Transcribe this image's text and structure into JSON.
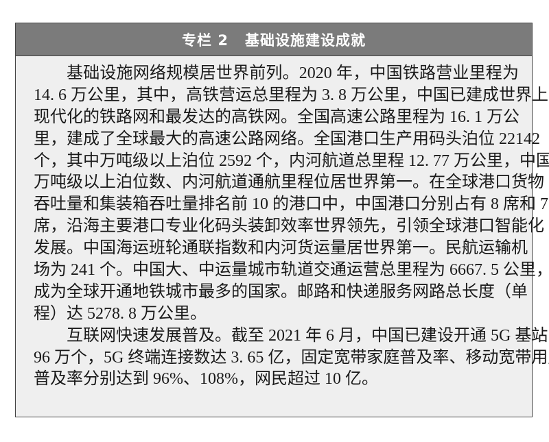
{
  "header": {
    "label": "专栏 2",
    "title": "基础设施建设成就"
  },
  "paragraphs": [
    {
      "lines": [
        "基础设施网络规模居世界前列。2020 年，中国铁路营业里程为",
        "14. 6 万公里，其中，高铁营运总里程为 3. 8 万公里，中国已建成世界上最",
        "现代化的铁路网和最发达的高铁网。全国高速公路里程为 16. 1 万公",
        "里，建成了全球最大的高速公路网络。全国港口生产用码头泊位 22142",
        "个，其中万吨级以上泊位 2592 个，内河航道总里程 12. 77 万公里，中国",
        "万吨级以上泊位数、内河航道通航里程位居世界第一。在全球港口货物",
        "吞吐量和集装箱吞吐量排名前 10 的港口中，中国港口分别占有 8 席和 7",
        "席，沿海主要港口专业化码头装卸效率世界领先，引领全球港口智能化",
        "发展。中国海运班轮通联指数和内河货运量居世界第一。民航运输机",
        "场为 241 个。中国大、中运量城市轨道交通运营总里程为 6667. 5 公里，",
        "成为全球开通地铁城市最多的国家。邮路和快递服务网路总长度（单",
        "程）达 5278. 8 万公里。"
      ]
    },
    {
      "lines": [
        "互联网快速发展普及。截至 2021 年 6 月，中国已建设开通 5G 基站",
        "96 万个，5G 终端连接数达 3. 65 亿，固定宽带家庭普及率、移动宽带用户",
        "普及率分别达到 96%、108%，网民超过 10 亿。"
      ]
    }
  ]
}
